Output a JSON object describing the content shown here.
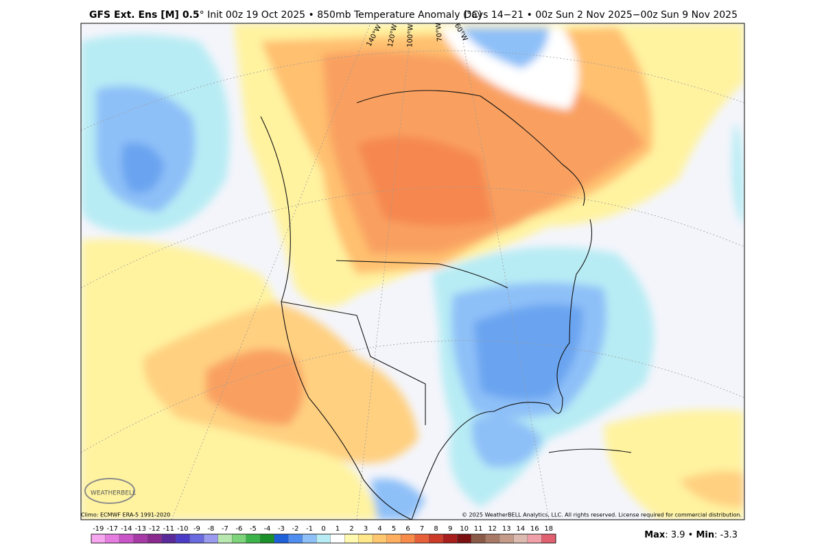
{
  "header": {
    "title_bold": "GFS Ext.  Ens [M] 0.5",
    "title_rest": "° Init 00z 19 Oct 2025 • 850mb Temperature Anomaly (°C)",
    "valid": "Days 14−21 • 00z Sun 2 Nov 2025−00z Sun 9 Nov 2025"
  },
  "map": {
    "longitude_labels": [
      "140°W",
      "120°W",
      "100°W",
      "70°W",
      "60°W"
    ],
    "logo": "WEATHERBELL",
    "climo": "Climo: ECMWF ERA-5 1991-2020",
    "copyright": "© 2025 WeatherBELL Analytics, LLC. All rights reserved. License required for commercial distribution."
  },
  "colorbar": {
    "labels": [
      -19,
      -17,
      -14,
      -13,
      -12,
      -11,
      -10,
      -9,
      -8,
      -7,
      -6,
      -5,
      -4,
      -3,
      -2,
      -1,
      0,
      1,
      2,
      3,
      4,
      5,
      6,
      7,
      8,
      9,
      10,
      11,
      12,
      13,
      14,
      16,
      18
    ],
    "colors": [
      "#f7a6f0",
      "#e57de0",
      "#c955c8",
      "#a83aa8",
      "#8a2a8e",
      "#5a2a9a",
      "#4b3cc8",
      "#6a6ae0",
      "#9a9aee",
      "#b8e8b0",
      "#7ed47a",
      "#3cb44a",
      "#1a8f2a",
      "#1f5fd8",
      "#4f8ef0",
      "#8ec0f8",
      "#b8ecf4",
      "#ffffff",
      "#fff8b0",
      "#ffe78a",
      "#ffc870",
      "#ffae60",
      "#f98b4a",
      "#e8603a",
      "#cc3a28",
      "#a81e1c",
      "#7a1010",
      "#8a5a48",
      "#a87a66",
      "#c49a88",
      "#dcbab0",
      "#f0a0a8",
      "#e06070"
    ]
  },
  "stats": {
    "max_label": "Max",
    "max": 3.9,
    "min_label": "Min",
    "min": -3.3
  }
}
